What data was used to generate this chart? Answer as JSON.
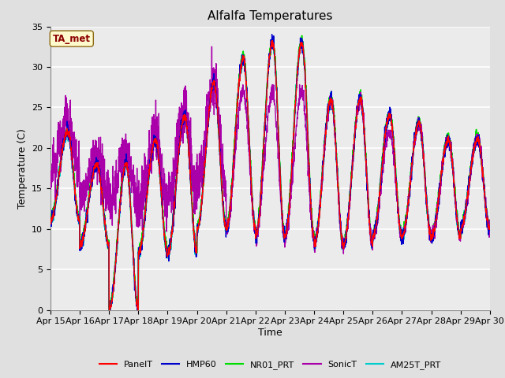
{
  "title": "Alfalfa Temperatures",
  "xlabel": "Time",
  "ylabel": "Temperature (C)",
  "ylim": [
    0,
    35
  ],
  "yticks": [
    0,
    5,
    10,
    15,
    20,
    25,
    30,
    35
  ],
  "annotation_text": "TA_met",
  "annotation_color": "#8B0000",
  "annotation_bg": "#FFFACD",
  "annotation_border": "#8B6914",
  "series": {
    "PanelT": {
      "color": "#FF0000",
      "lw": 1.0,
      "zorder": 5
    },
    "HMP60": {
      "color": "#0000CC",
      "lw": 1.0,
      "zorder": 4
    },
    "NR01_PRT": {
      "color": "#00DD00",
      "lw": 1.2,
      "zorder": 3
    },
    "SonicT": {
      "color": "#AA00AA",
      "lw": 1.0,
      "zorder": 3
    },
    "AM25T_PRT": {
      "color": "#00CCCC",
      "lw": 1.2,
      "zorder": 2
    }
  },
  "bg_color": "#E0E0E0",
  "plot_bg": "#EBEBEB",
  "xtick_labels": [
    "Apr 15",
    "Apr 16",
    "Apr 17",
    "Apr 18",
    "Apr 19",
    "Apr 20",
    "Apr 21",
    "Apr 22",
    "Apr 23",
    "Apr 24",
    "Apr 25",
    "Apr 26",
    "Apr 27",
    "Apr 28",
    "Apr 29",
    "Apr 30"
  ],
  "xtick_positions": [
    0,
    1,
    2,
    3,
    4,
    5,
    6,
    7,
    8,
    9,
    10,
    11,
    12,
    13,
    14,
    15
  ]
}
